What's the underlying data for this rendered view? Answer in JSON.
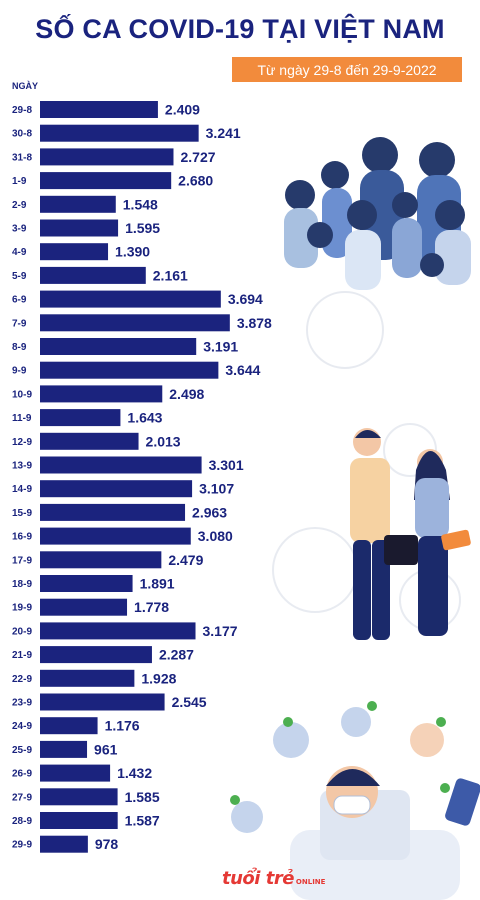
{
  "header": {
    "title": "SỐ CA COVID-19 TẠI VIỆT NAM",
    "date_range": "Từ ngày 29-8 đến 29-9-2022"
  },
  "logo": {
    "name": "tuoi-tre-online-logo",
    "text": "tuổi trẻ",
    "sub": "ONLINE"
  },
  "chart_data": {
    "type": "bar",
    "orientation": "horizontal",
    "ylabel": "NGÀY",
    "categories": [
      "29-8",
      "30-8",
      "31-8",
      "1-9",
      "2-9",
      "3-9",
      "4-9",
      "5-9",
      "6-9",
      "7-9",
      "8-9",
      "9-9",
      "10-9",
      "11-9",
      "12-9",
      "13-9",
      "14-9",
      "15-9",
      "16-9",
      "17-9",
      "18-9",
      "19-9",
      "20-9",
      "21-9",
      "22-9",
      "23-9",
      "24-9",
      "25-9",
      "26-9",
      "27-9",
      "28-9",
      "29-9"
    ],
    "values": [
      2409,
      3241,
      2727,
      2680,
      1548,
      1595,
      1390,
      2161,
      3694,
      3878,
      3191,
      3644,
      2498,
      1643,
      2013,
      3301,
      3107,
      2963,
      3080,
      2479,
      1891,
      1778,
      3177,
      2287,
      1928,
      2545,
      1176,
      961,
      1432,
      1585,
      1587,
      978
    ],
    "value_labels": [
      "2.409",
      "3.241",
      "2.727",
      "2.680",
      "1.548",
      "1.595",
      "1.390",
      "2.161",
      "3.694",
      "3.878",
      "3.191",
      "3.644",
      "2.498",
      "1.643",
      "2.013",
      "3.301",
      "3.107",
      "2.963",
      "3.080",
      "2.479",
      "1.891",
      "1.778",
      "3.177",
      "2.287",
      "1.928",
      "2.545",
      "1.176",
      "961",
      "1.432",
      "1.585",
      "1.587",
      "978"
    ],
    "bar_color": "#1b237e",
    "label_color": "#1a237e",
    "grid": false,
    "legend": "none"
  }
}
